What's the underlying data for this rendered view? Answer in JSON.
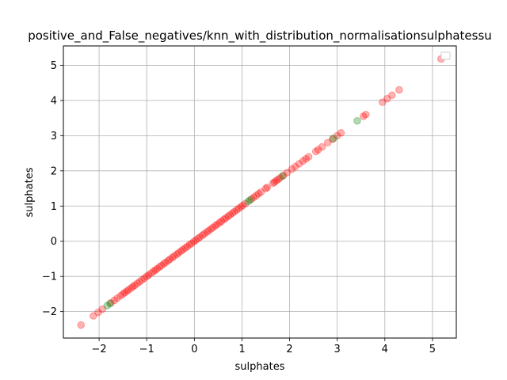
{
  "chart_data": {
    "type": "scatter",
    "title": "positive_and_False_negatives/knn_with_distribution_normalisationsulphatessu",
    "xlabel": "sulphates",
    "ylabel": "sulphates",
    "xlim": [
      -2.75,
      5.5
    ],
    "ylim": [
      -2.75,
      5.55
    ],
    "xticks": [
      -2,
      -1,
      0,
      1,
      2,
      3,
      4,
      5
    ],
    "yticks": [
      -2,
      -1,
      0,
      1,
      2,
      3,
      4,
      5
    ],
    "grid": true,
    "legend": "top-right",
    "series": [
      {
        "color": "#ff0000",
        "alpha": 0.3,
        "values": [
          -2.38,
          -2.12,
          -2.02,
          -1.93,
          -1.75,
          -1.68,
          -1.62,
          -1.55,
          -1.5,
          -1.46,
          -1.42,
          -1.38,
          -1.33,
          -1.29,
          -1.25,
          -1.2,
          -1.15,
          -1.1,
          -1.05,
          -1.0,
          -0.96,
          -0.91,
          -0.86,
          -0.82,
          -0.78,
          -0.73,
          -0.69,
          -0.64,
          -0.6,
          -0.55,
          -0.51,
          -0.46,
          -0.42,
          -0.37,
          -0.33,
          -0.28,
          -0.24,
          -0.19,
          -0.15,
          -0.1,
          -0.06,
          -0.01,
          0.03,
          0.08,
          0.12,
          0.17,
          0.21,
          0.26,
          0.3,
          0.35,
          0.39,
          0.44,
          0.48,
          0.53,
          0.57,
          0.62,
          0.66,
          0.71,
          0.75,
          0.8,
          0.84,
          0.89,
          0.93,
          0.98,
          1.02,
          1.07,
          1.2,
          1.25,
          1.3,
          1.35,
          1.4,
          1.5,
          1.53,
          1.65,
          1.68,
          1.72,
          1.76,
          1.8,
          1.87,
          1.95,
          2.05,
          2.12,
          2.2,
          2.28,
          2.34,
          2.4,
          2.55,
          2.6,
          2.68,
          2.8,
          2.9,
          3.0,
          3.08,
          3.55,
          3.6,
          3.95,
          4.05,
          4.15,
          4.3,
          5.18
        ]
      },
      {
        "color": "#008000",
        "alpha": 0.3,
        "values": [
          -1.83,
          -1.77,
          1.13,
          1.17,
          1.85,
          2.92,
          3.42
        ]
      }
    ]
  }
}
